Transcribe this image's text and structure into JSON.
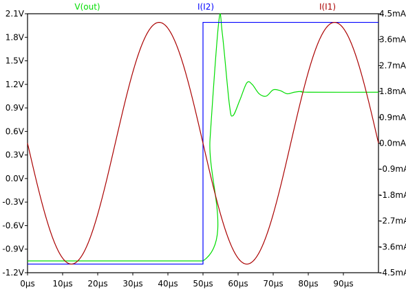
{
  "chart_data": {
    "type": "line",
    "xlabel": "",
    "xlim": [
      0,
      100
    ],
    "x_ticks": [
      {
        "value": 0,
        "label": "0µs"
      },
      {
        "value": 10,
        "label": "10µs"
      },
      {
        "value": 20,
        "label": "20µs"
      },
      {
        "value": 30,
        "label": "30µs"
      },
      {
        "value": 40,
        "label": "40µs"
      },
      {
        "value": 50,
        "label": "50µs"
      },
      {
        "value": 60,
        "label": "60µs"
      },
      {
        "value": 70,
        "label": "70µs"
      },
      {
        "value": 80,
        "label": "80µs"
      },
      {
        "value": 90,
        "label": "90µs"
      }
    ],
    "left_axis": {
      "unit": "V",
      "ylim": [
        -1.2,
        2.1
      ],
      "ticks": [
        {
          "value": 2.1,
          "label": "2.1V"
        },
        {
          "value": 1.8,
          "label": "1.8V"
        },
        {
          "value": 1.5,
          "label": "1.5V"
        },
        {
          "value": 1.2,
          "label": "1.2V"
        },
        {
          "value": 0.9,
          "label": "0.9V"
        },
        {
          "value": 0.6,
          "label": "0.6V"
        },
        {
          "value": 0.3,
          "label": "0.3V"
        },
        {
          "value": 0.0,
          "label": "0.0V"
        },
        {
          "value": -0.3,
          "label": "-0.3V"
        },
        {
          "value": -0.6,
          "label": "-0.6V"
        },
        {
          "value": -0.9,
          "label": "-0.9V"
        },
        {
          "value": -1.2,
          "label": "-1.2V"
        }
      ]
    },
    "right_axis": {
      "unit": "mA",
      "ylim": [
        -4.5,
        4.5
      ],
      "ticks": [
        {
          "value": 4.5,
          "label": "4.5mA"
        },
        {
          "value": 3.6,
          "label": "3.6mA"
        },
        {
          "value": 2.7,
          "label": "2.7mA"
        },
        {
          "value": 1.8,
          "label": "1.8mA"
        },
        {
          "value": 0.9,
          "label": "0.9mA"
        },
        {
          "value": 0.0,
          "label": "0.0mA"
        },
        {
          "value": -0.9,
          "label": "-0.9mA"
        },
        {
          "value": -1.8,
          "label": "-1.8mA"
        },
        {
          "value": -2.7,
          "label": "-2.7mA"
        },
        {
          "value": -3.6,
          "label": "-3.6mA"
        },
        {
          "value": -4.5,
          "label": "-4.5mA"
        }
      ]
    },
    "series": [
      {
        "name": "V(out)",
        "color": "#00dd00",
        "axis": "left",
        "model": "step_response",
        "points": [
          [
            0,
            -1.05
          ],
          [
            50,
            -1.05
          ],
          [
            52,
            0.5
          ],
          [
            54.5,
            2.0
          ],
          [
            55.5,
            1.85
          ],
          [
            57.5,
            0.95
          ],
          [
            58.5,
            0.8
          ],
          [
            60.5,
            1.0
          ],
          [
            62.5,
            1.22
          ],
          [
            64,
            1.2
          ],
          [
            66,
            1.08
          ],
          [
            68,
            1.05
          ],
          [
            70,
            1.13
          ],
          [
            72,
            1.12
          ],
          [
            74,
            1.08
          ],
          [
            76,
            1.1
          ],
          [
            78,
            1.11
          ],
          [
            80,
            1.1
          ],
          [
            100,
            1.1
          ]
        ]
      },
      {
        "name": "I(I2)",
        "color": "#0000ff",
        "axis": "right",
        "model": "step",
        "points": [
          [
            0,
            -4.2
          ],
          [
            50,
            -4.2
          ],
          [
            50,
            4.2
          ],
          [
            100,
            4.2
          ]
        ]
      },
      {
        "name": "I(I1)",
        "color": "#aa0000",
        "axis": "right",
        "model": "sine",
        "amplitude": 4.2,
        "period": 50,
        "peak_at": 37.5,
        "points": [
          [
            0,
            0
          ],
          [
            12.5,
            -4.2
          ],
          [
            25,
            0
          ],
          [
            37.5,
            4.2
          ],
          [
            50,
            0
          ],
          [
            62.5,
            -4.2
          ],
          [
            75,
            0
          ],
          [
            87.5,
            4.2
          ],
          [
            100,
            0
          ]
        ]
      }
    ]
  }
}
